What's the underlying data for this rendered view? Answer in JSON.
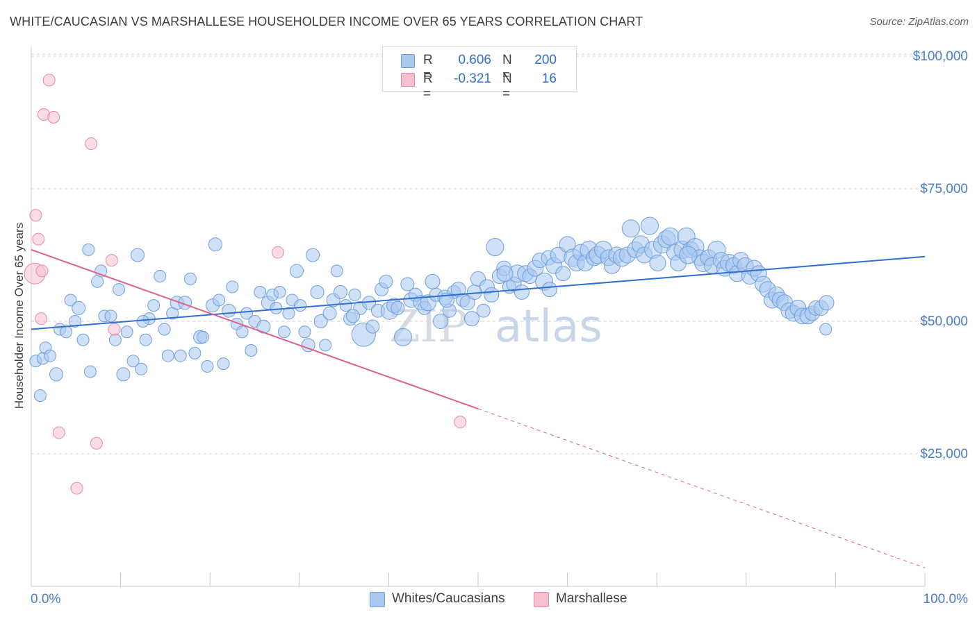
{
  "header": {
    "title": "WHITE/CAUCASIAN VS MARSHALLESE HOUSEHOLDER INCOME OVER 65 YEARS CORRELATION CHART",
    "source": "Source: ZipAtlas.com"
  },
  "watermark": {
    "zip": "ZIP",
    "atlas": "atlas"
  },
  "legend": {
    "r_label": "R =",
    "n_label": "N =",
    "rows": [
      {
        "r": "0.606",
        "n": "200"
      },
      {
        "r": "-0.321",
        "n": "16"
      }
    ]
  },
  "bottom_legend": [
    "Whites/Caucasians",
    "Marshallese"
  ],
  "colors": {
    "blue_fill": "#a9c8f0",
    "blue_stroke": "#6f9fdc",
    "blue_line": "#2f6fd0",
    "pink_fill": "#f6bfcf",
    "pink_stroke": "#e88aa6",
    "pink_line": "#e0608a",
    "axis_text": "#4a7cc9",
    "grid": "#cfd3d8"
  },
  "chart_data": {
    "type": "scatter",
    "title": "WHITE/CAUCASIAN VS MARSHALLESE HOUSEHOLDER INCOME OVER 65 YEARS CORRELATION CHART",
    "xlabel": "",
    "ylabel": "Householder Income Over 65 years",
    "xlim": [
      0,
      100
    ],
    "ylim": [
      0,
      105000
    ],
    "x_tick_labels": [
      "0.0%",
      "100.0%"
    ],
    "y_tick_values": [
      25000,
      50000,
      75000,
      100000
    ],
    "y_tick_labels": [
      "$25,000",
      "$50,000",
      "$75,000",
      "$100,000"
    ],
    "grid": true,
    "series": [
      {
        "name": "Whites/Caucasians",
        "r": 0.606,
        "n": 200,
        "trend": {
          "x": [
            0,
            100
          ],
          "y": [
            48500,
            62200
          ]
        },
        "points": [
          [
            0.5,
            42500,
            8
          ],
          [
            1.0,
            36000,
            8
          ],
          [
            1.3,
            43000,
            8
          ],
          [
            1.6,
            45000,
            8
          ],
          [
            2.1,
            43500,
            8
          ],
          [
            2.8,
            40000,
            9
          ],
          [
            3.2,
            48500,
            8
          ],
          [
            3.9,
            48000,
            8
          ],
          [
            4.4,
            54000,
            8
          ],
          [
            4.9,
            50000,
            8
          ],
          [
            5.3,
            52500,
            9
          ],
          [
            5.8,
            46500,
            8
          ],
          [
            6.4,
            63500,
            8
          ],
          [
            6.6,
            40500,
            8
          ],
          [
            7.4,
            57500,
            8
          ],
          [
            7.8,
            59500,
            8
          ],
          [
            8.2,
            51000,
            8
          ],
          [
            8.9,
            51000,
            8
          ],
          [
            9.4,
            46500,
            8
          ],
          [
            9.8,
            56000,
            8
          ],
          [
            10.3,
            40000,
            9
          ],
          [
            10.7,
            48000,
            8
          ],
          [
            11.4,
            42500,
            8
          ],
          [
            11.9,
            62500,
            9
          ],
          [
            12.3,
            41000,
            8
          ],
          [
            12.8,
            46500,
            8
          ],
          [
            13.2,
            50500,
            8
          ],
          [
            13.7,
            53000,
            8
          ],
          [
            14.4,
            58500,
            8
          ],
          [
            14.9,
            48500,
            8
          ],
          [
            15.3,
            43500,
            8
          ],
          [
            15.8,
            51500,
            8
          ],
          [
            16.3,
            53500,
            9
          ],
          [
            16.7,
            43500,
            8
          ],
          [
            17.2,
            53500,
            9
          ],
          [
            17.8,
            58000,
            8
          ],
          [
            18.3,
            44000,
            8
          ],
          [
            18.9,
            47000,
            9
          ],
          [
            19.2,
            47000,
            8
          ],
          [
            19.7,
            41500,
            8
          ],
          [
            20.3,
            53000,
            9
          ],
          [
            20.6,
            64500,
            9
          ],
          [
            21.0,
            54000,
            8
          ],
          [
            21.5,
            42000,
            8
          ],
          [
            22.1,
            52000,
            9
          ],
          [
            22.5,
            56500,
            8
          ],
          [
            23.0,
            49500,
            8
          ],
          [
            23.6,
            48000,
            8
          ],
          [
            24.1,
            51500,
            8
          ],
          [
            24.6,
            44500,
            8
          ],
          [
            25.0,
            50000,
            8
          ],
          [
            25.6,
            55500,
            8
          ],
          [
            26.0,
            49000,
            9
          ],
          [
            26.5,
            53500,
            9
          ],
          [
            27.0,
            55000,
            8
          ],
          [
            27.4,
            52500,
            8
          ],
          [
            27.8,
            55500,
            8
          ],
          [
            28.3,
            48000,
            8
          ],
          [
            28.8,
            51500,
            8
          ],
          [
            29.2,
            54000,
            8
          ],
          [
            29.7,
            59500,
            9
          ],
          [
            30.1,
            53000,
            8
          ],
          [
            30.6,
            48000,
            8
          ],
          [
            31.0,
            45500,
            9
          ],
          [
            31.5,
            62500,
            9
          ],
          [
            32.0,
            55500,
            9
          ],
          [
            32.4,
            50000,
            9
          ],
          [
            32.9,
            45500,
            8
          ],
          [
            33.4,
            51500,
            9
          ],
          [
            33.8,
            54000,
            9
          ],
          [
            34.2,
            59500,
            8
          ],
          [
            34.6,
            55500,
            9
          ],
          [
            35.2,
            53000,
            8
          ],
          [
            35.7,
            50500,
            9
          ],
          [
            36.2,
            55000,
            8
          ],
          [
            36.8,
            52500,
            9
          ],
          [
            37.2,
            47500,
            18
          ],
          [
            37.8,
            53500,
            9
          ],
          [
            38.2,
            49000,
            9
          ],
          [
            38.8,
            52000,
            9
          ],
          [
            39.2,
            56000,
            9
          ],
          [
            39.7,
            57500,
            9
          ],
          [
            40.1,
            52000,
            12
          ],
          [
            40.6,
            53000,
            10
          ],
          [
            41.0,
            52500,
            9
          ],
          [
            41.6,
            47000,
            12
          ],
          [
            42.1,
            57000,
            9
          ],
          [
            42.5,
            54000,
            10
          ],
          [
            43.0,
            55000,
            9
          ],
          [
            43.6,
            53500,
            10
          ],
          [
            44.0,
            52500,
            9
          ],
          [
            44.4,
            53500,
            11
          ],
          [
            44.9,
            57500,
            10
          ],
          [
            45.3,
            55000,
            9
          ],
          [
            45.8,
            50000,
            10
          ],
          [
            46.3,
            54500,
            10
          ],
          [
            46.8,
            52000,
            9
          ],
          [
            47.3,
            55500,
            9
          ],
          [
            47.8,
            56000,
            10
          ],
          [
            48.3,
            54000,
            9
          ],
          [
            48.8,
            53500,
            10
          ],
          [
            49.3,
            50500,
            10
          ],
          [
            49.6,
            55500,
            10
          ],
          [
            50.0,
            58000,
            10
          ],
          [
            50.6,
            52000,
            9
          ],
          [
            51.0,
            56500,
            10
          ],
          [
            51.5,
            55000,
            10
          ],
          [
            51.9,
            64000,
            12
          ],
          [
            52.4,
            58500,
            10
          ],
          [
            52.9,
            60000,
            10
          ],
          [
            53.5,
            56500,
            9
          ],
          [
            54.0,
            57000,
            10
          ],
          [
            54.4,
            59000,
            12
          ],
          [
            54.9,
            55500,
            10
          ],
          [
            55.3,
            59000,
            11
          ],
          [
            55.8,
            58500,
            10
          ],
          [
            56.4,
            60000,
            11
          ],
          [
            56.9,
            61500,
            10
          ],
          [
            57.4,
            57500,
            12
          ],
          [
            57.9,
            62000,
            10
          ],
          [
            58.5,
            60500,
            11
          ],
          [
            59.0,
            62500,
            11
          ],
          [
            59.5,
            59000,
            10
          ],
          [
            60.0,
            64500,
            11
          ],
          [
            60.6,
            62000,
            12
          ],
          [
            61.0,
            61000,
            11
          ],
          [
            61.5,
            63000,
            11
          ],
          [
            62.0,
            61000,
            11
          ],
          [
            62.4,
            63500,
            12
          ],
          [
            63.0,
            62000,
            11
          ],
          [
            63.4,
            62500,
            12
          ],
          [
            64.0,
            63500,
            12
          ],
          [
            64.6,
            62000,
            11
          ],
          [
            65.0,
            60500,
            11
          ],
          [
            65.5,
            62500,
            11
          ],
          [
            66.1,
            62000,
            12
          ],
          [
            66.7,
            62500,
            11
          ],
          [
            67.1,
            67500,
            12
          ],
          [
            67.6,
            63500,
            11
          ],
          [
            68.2,
            64500,
            12
          ],
          [
            68.6,
            62500,
            11
          ],
          [
            69.2,
            68000,
            12
          ],
          [
            69.6,
            63500,
            12
          ],
          [
            70.1,
            61000,
            11
          ],
          [
            70.6,
            64500,
            12
          ],
          [
            71.1,
            65500,
            12
          ],
          [
            71.5,
            66000,
            12
          ],
          [
            72.0,
            63000,
            11
          ],
          [
            72.4,
            61000,
            11
          ],
          [
            72.9,
            63500,
            12
          ],
          [
            73.3,
            66000,
            12
          ],
          [
            73.8,
            63500,
            11
          ],
          [
            74.3,
            64000,
            12
          ],
          [
            74.8,
            62000,
            11
          ],
          [
            75.2,
            61000,
            12
          ],
          [
            75.8,
            62000,
            11
          ],
          [
            76.2,
            60500,
            11
          ],
          [
            76.7,
            63500,
            12
          ],
          [
            77.2,
            61500,
            11
          ],
          [
            77.6,
            60000,
            11
          ],
          [
            78.1,
            61000,
            12
          ],
          [
            78.6,
            60500,
            11
          ],
          [
            79.0,
            59000,
            11
          ],
          [
            79.4,
            61500,
            11
          ],
          [
            79.9,
            60500,
            11
          ],
          [
            80.4,
            58500,
            11
          ],
          [
            80.9,
            60000,
            11
          ],
          [
            81.4,
            59000,
            11
          ],
          [
            81.9,
            57000,
            11
          ],
          [
            82.4,
            56000,
            11
          ],
          [
            82.9,
            54000,
            11
          ],
          [
            83.4,
            55000,
            11
          ],
          [
            83.8,
            54000,
            11
          ],
          [
            84.3,
            53500,
            11
          ],
          [
            84.8,
            52000,
            11
          ],
          [
            85.3,
            51500,
            11
          ],
          [
            85.8,
            52500,
            11
          ],
          [
            86.3,
            51000,
            11
          ],
          [
            86.9,
            51000,
            11
          ],
          [
            87.4,
            51500,
            10
          ],
          [
            87.8,
            52500,
            10
          ],
          [
            88.4,
            52500,
            10
          ],
          [
            89.0,
            53500,
            10
          ],
          [
            12.5,
            50000,
            8
          ],
          [
            36.0,
            51000,
            9
          ],
          [
            46.5,
            54000,
            10
          ],
          [
            53.0,
            59000,
            11
          ],
          [
            58.0,
            56000,
            10
          ],
          [
            73.5,
            62500,
            12
          ],
          [
            88.9,
            48500,
            8
          ]
        ]
      },
      {
        "name": "Marshallese",
        "r": -0.321,
        "n": 16,
        "trend": {
          "x": [
            0,
            50
          ],
          "y": [
            63500,
            33500
          ]
        },
        "trend_extension": {
          "x": [
            50,
            100
          ],
          "y": [
            33500,
            3500
          ]
        },
        "points": [
          [
            0.4,
            59000,
            16
          ],
          [
            0.5,
            70000,
            8
          ],
          [
            0.8,
            65500,
            8
          ],
          [
            1.1,
            50500,
            8
          ],
          [
            1.2,
            59500,
            8
          ],
          [
            1.4,
            89000,
            8
          ],
          [
            2.0,
            95500,
            8
          ],
          [
            2.5,
            88500,
            8
          ],
          [
            3.1,
            29000,
            8
          ],
          [
            5.1,
            18500,
            8
          ],
          [
            6.7,
            83500,
            8
          ],
          [
            7.3,
            27000,
            8
          ],
          [
            9.0,
            61500,
            8
          ],
          [
            9.3,
            48500,
            8
          ],
          [
            27.6,
            63000,
            8
          ],
          [
            48.0,
            31000,
            8
          ]
        ]
      }
    ]
  }
}
